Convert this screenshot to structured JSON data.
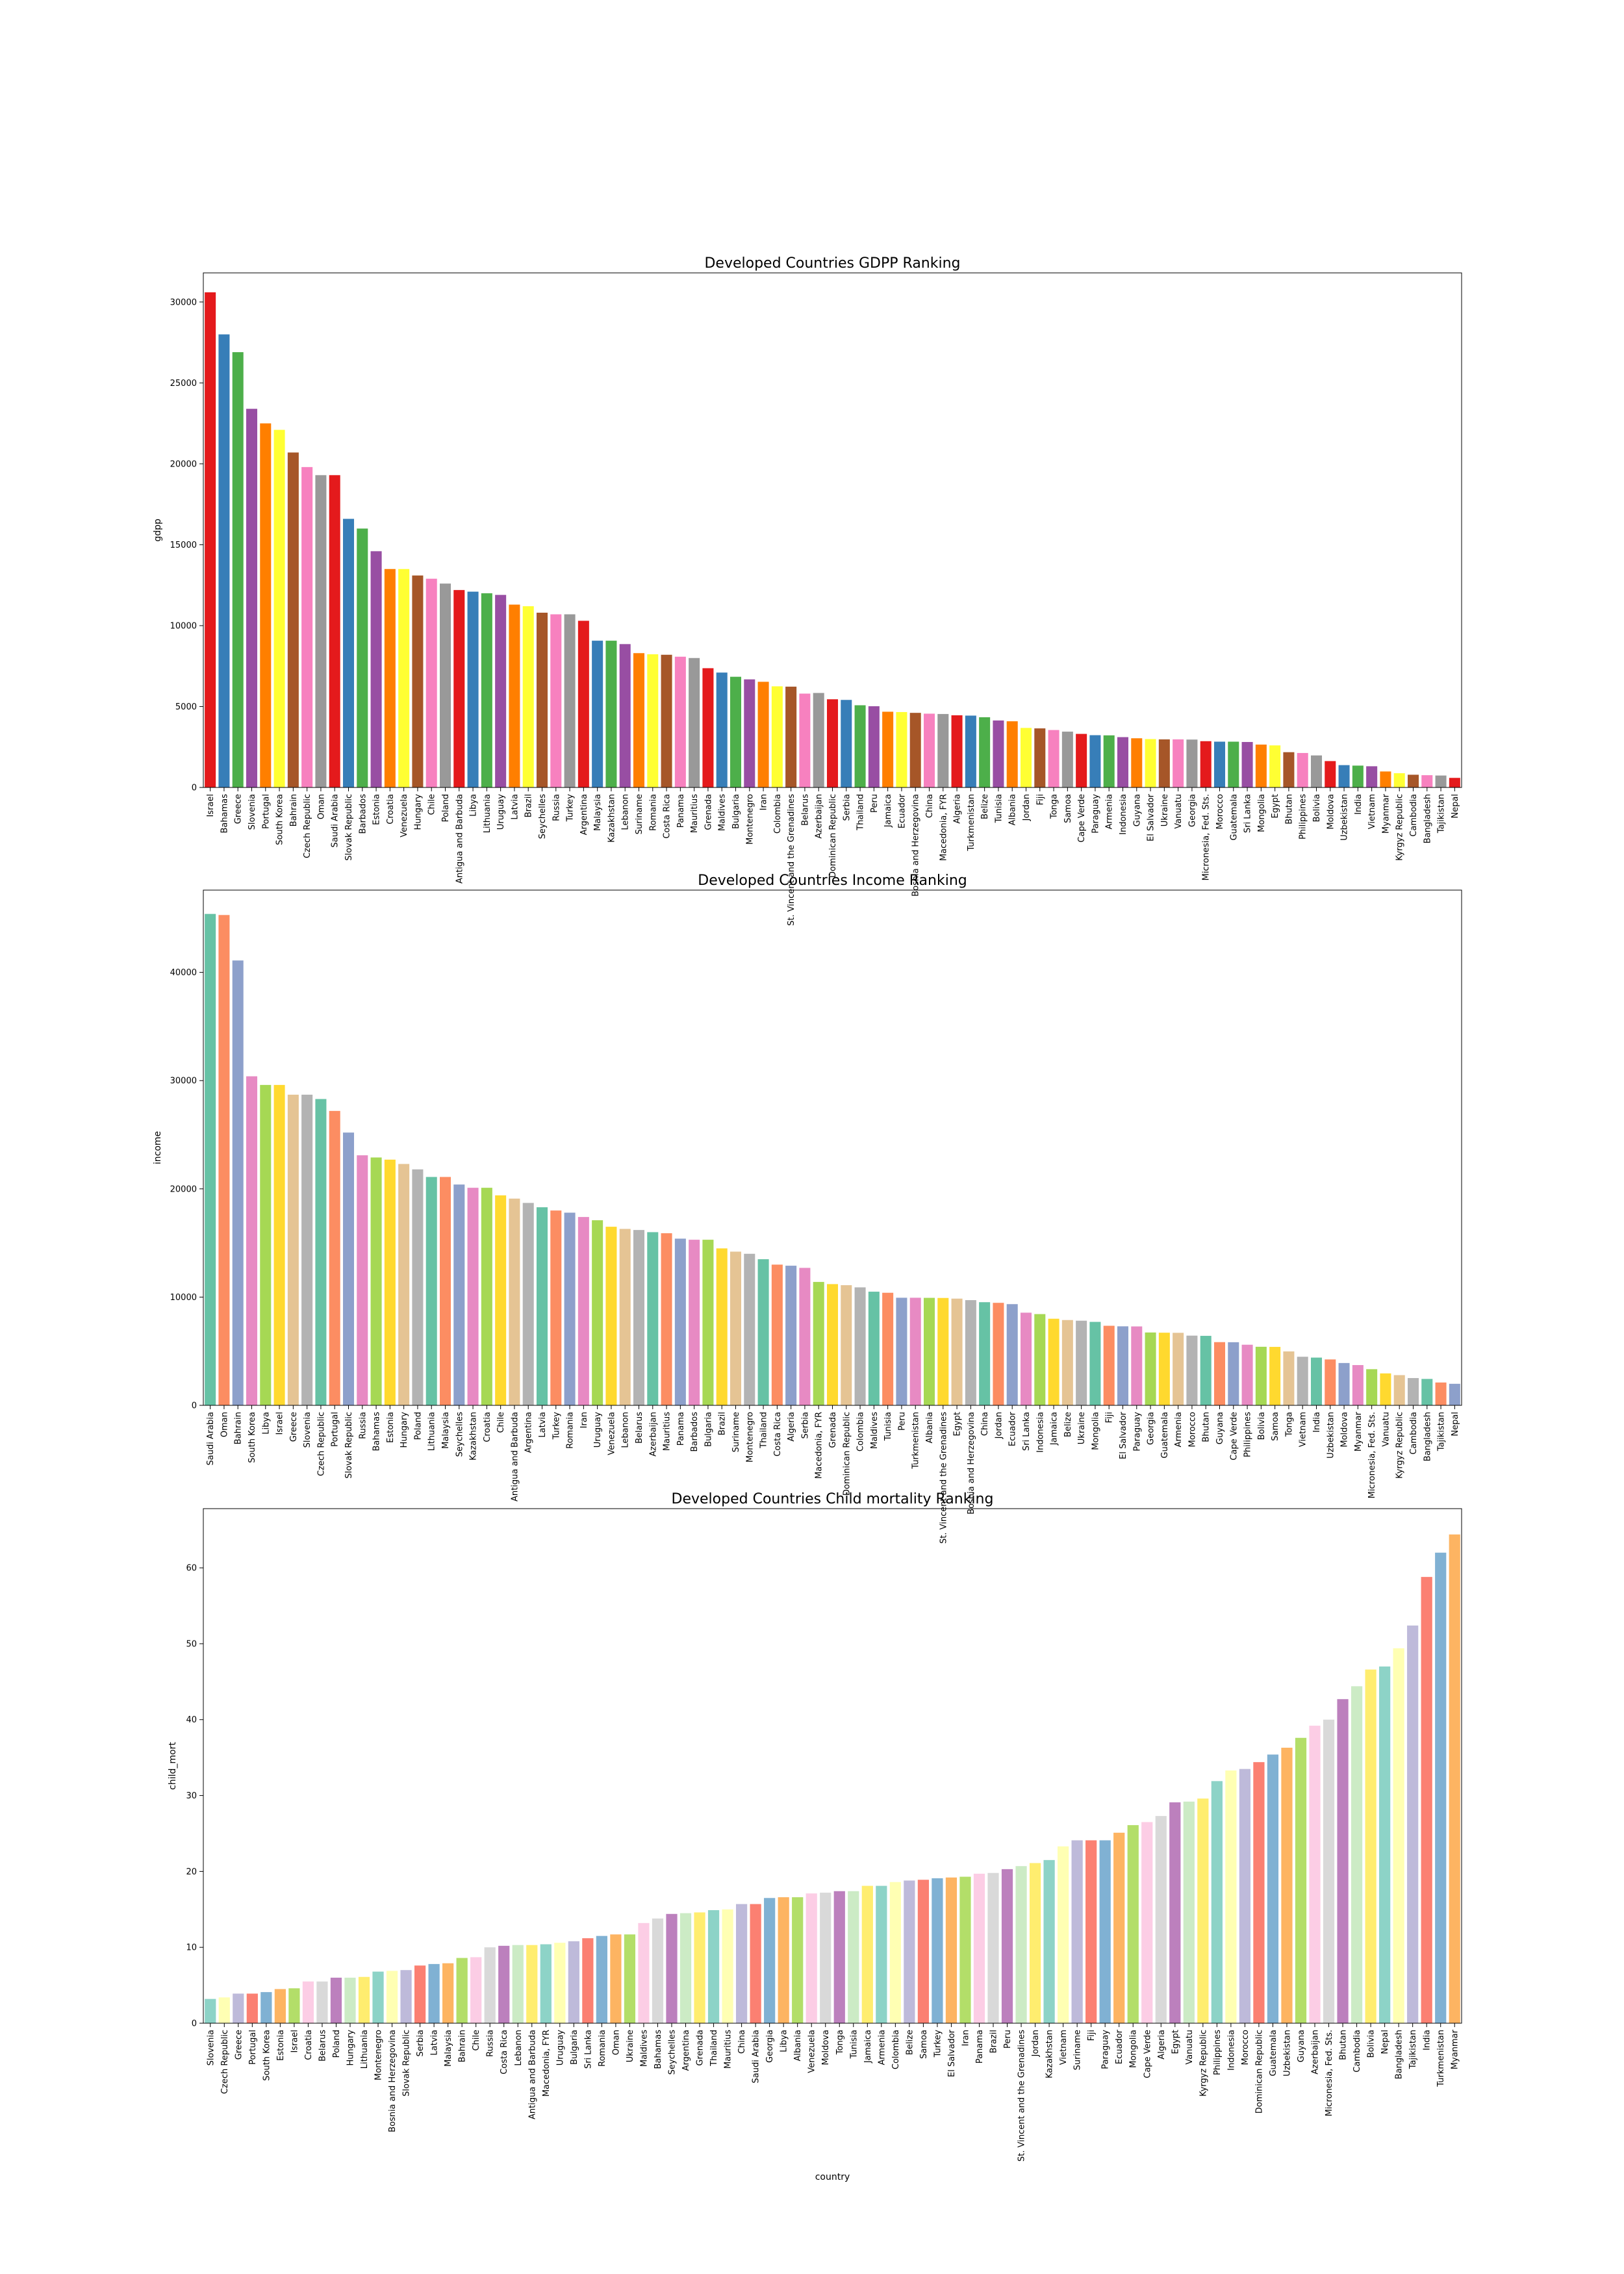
{
  "chart_data": [
    {
      "type": "bar",
      "title": "Developed Countries GDPP Ranking",
      "xlabel": "",
      "ylabel": "gdpp",
      "ylim": [
        0,
        31800
      ],
      "yticks": [
        0,
        5000,
        10000,
        15000,
        20000,
        25000,
        30000
      ],
      "palette": [
        "#e41a1c",
        "#377eb8",
        "#4daf4a",
        "#984ea3",
        "#ff7f00",
        "#ffff33",
        "#a65628",
        "#f781bf",
        "#999999"
      ],
      "categories": [
        "Israel",
        "Bahamas",
        "Greece",
        "Slovenia",
        "Portugal",
        "South Korea",
        "Bahrain",
        "Czech Republic",
        "Oman",
        "Saudi Arabia",
        "Slovak Republic",
        "Barbados",
        "Estonia",
        "Croatia",
        "Venezuela",
        "Hungary",
        "Chile",
        "Poland",
        "Antigua and Barbuda",
        "Libya",
        "Lithuania",
        "Uruguay",
        "Latvia",
        "Brazil",
        "Seychelles",
        "Russia",
        "Turkey",
        "Argentina",
        "Malaysia",
        "Kazakhstan",
        "Lebanon",
        "Suriname",
        "Romania",
        "Costa Rica",
        "Panama",
        "Mauritius",
        "Grenada",
        "Maldives",
        "Bulgaria",
        "Montenegro",
        "Iran",
        "Colombia",
        "St. Vincent and the Grenadines",
        "Belarus",
        "Azerbaijan",
        "Dominican Republic",
        "Serbia",
        "Thailand",
        "Peru",
        "Jamaica",
        "Ecuador",
        "Bosnia and Herzegovina",
        "China",
        "Macedonia, FYR",
        "Algeria",
        "Turkmenistan",
        "Belize",
        "Tunisia",
        "Albania",
        "Jordan",
        "Fiji",
        "Tonga",
        "Samoa",
        "Cape Verde",
        "Paraguay",
        "Armenia",
        "Indonesia",
        "Guyana",
        "El Salvador",
        "Ukraine",
        "Vanuatu",
        "Georgia",
        "Micronesia, Fed. Sts.",
        "Morocco",
        "Guatemala",
        "Sri Lanka",
        "Mongolia",
        "Egypt",
        "Bhutan",
        "Philippines",
        "Bolivia",
        "Moldova",
        "Uzbekistan",
        "India",
        "Vietnam",
        "Myanmar",
        "Kyrgyz Republic",
        "Cambodia",
        "Bangladesh",
        "Tajikistan",
        "Nepal"
      ],
      "values": [
        30600,
        28000,
        26900,
        23400,
        22500,
        22100,
        20700,
        19800,
        19300,
        19300,
        16600,
        16000,
        14600,
        13500,
        13500,
        13100,
        12900,
        12600,
        12200,
        12100,
        12000,
        11900,
        11300,
        11200,
        10800,
        10700,
        10700,
        10300,
        9070,
        9070,
        8860,
        8300,
        8230,
        8200,
        8080,
        8000,
        7370,
        7100,
        6840,
        6680,
        6530,
        6250,
        6230,
        5800,
        5840,
        5450,
        5410,
        5080,
        5020,
        4680,
        4660,
        4610,
        4560,
        4540,
        4460,
        4440,
        4340,
        4140,
        4090,
        3680,
        3650,
        3550,
        3450,
        3310,
        3230,
        3220,
        3110,
        3040,
        2990,
        2970,
        2970,
        2960,
        2860,
        2830,
        2830,
        2810,
        2650,
        2600,
        2180,
        2130,
        1980,
        1630,
        1380,
        1350,
        1310,
        988,
        880,
        786,
        758,
        738,
        592
      ]
    },
    {
      "type": "bar",
      "title": "Developed Countries Income Ranking",
      "xlabel": "",
      "ylabel": "income",
      "ylim": [
        0,
        47600
      ],
      "yticks": [
        0,
        10000,
        20000,
        30000,
        40000
      ],
      "palette": [
        "#66c2a5",
        "#fc8d62",
        "#8da0cb",
        "#e78ac3",
        "#a6d854",
        "#ffd92f",
        "#e5c494",
        "#b3b3b3"
      ],
      "categories": [
        "Saudi Arabia",
        "Oman",
        "Bahrain",
        "South Korea",
        "Libya",
        "Israel",
        "Greece",
        "Slovenia",
        "Czech Republic",
        "Portugal",
        "Slovak Republic",
        "Russia",
        "Bahamas",
        "Estonia",
        "Hungary",
        "Poland",
        "Lithuania",
        "Malaysia",
        "Seychelles",
        "Kazakhstan",
        "Croatia",
        "Chile",
        "Antigua and Barbuda",
        "Argentina",
        "Latvia",
        "Turkey",
        "Romania",
        "Iran",
        "Uruguay",
        "Venezuela",
        "Lebanon",
        "Belarus",
        "Azerbaijan",
        "Mauritius",
        "Panama",
        "Barbados",
        "Bulgaria",
        "Brazil",
        "Suriname",
        "Montenegro",
        "Thailand",
        "Costa Rica",
        "Algeria",
        "Serbia",
        "Macedonia, FYR",
        "Grenada",
        "Dominican Republic",
        "Colombia",
        "Maldives",
        "Tunisia",
        "Peru",
        "Turkmenistan",
        "Albania",
        "St. Vincent and the Grenadines",
        "Egypt",
        "Bosnia and Herzegovina",
        "China",
        "Jordan",
        "Ecuador",
        "Sri Lanka",
        "Indonesia",
        "Jamaica",
        "Belize",
        "Ukraine",
        "Mongolia",
        "Fiji",
        "El Salvador",
        "Paraguay",
        "Georgia",
        "Guatemala",
        "Armenia",
        "Morocco",
        "Bhutan",
        "Guyana",
        "Cape Verde",
        "Philippines",
        "Bolivia",
        "Samoa",
        "Tonga",
        "Vietnam",
        "India",
        "Uzbekistan",
        "Moldova",
        "Myanmar",
        "Micronesia, Fed. Sts.",
        "Vanuatu",
        "Kyrgyz Republic",
        "Cambodia",
        "Bangladesh",
        "Tajikistan",
        "Nepal"
      ],
      "values": [
        45400,
        45300,
        41100,
        30400,
        29600,
        29600,
        28700,
        28700,
        28300,
        27200,
        25200,
        23100,
        22900,
        22700,
        22300,
        21800,
        21100,
        21100,
        20400,
        20100,
        20100,
        19400,
        19100,
        18700,
        18300,
        18000,
        17800,
        17400,
        17100,
        16500,
        16300,
        16200,
        16000,
        15900,
        15400,
        15300,
        15300,
        14500,
        14200,
        14000,
        13500,
        13000,
        12900,
        12700,
        11400,
        11200,
        11100,
        10900,
        10500,
        10400,
        9940,
        9940,
        9930,
        9920,
        9860,
        9720,
        9530,
        9470,
        9350,
        8560,
        8430,
        8000,
        7880,
        7820,
        7710,
        7350,
        7300,
        7290,
        6730,
        6710,
        6700,
        6440,
        6420,
        5840,
        5830,
        5600,
        5410,
        5400,
        4980,
        4490,
        4410,
        4240,
        3910,
        3720,
        3340,
        2950,
        2790,
        2520,
        2440,
        2110,
        1990
      ]
    },
    {
      "type": "bar",
      "title": "Developed Countries Child mortality Ranking",
      "xlabel": "country",
      "ylabel": "child_mort",
      "ylim": [
        0,
        67.8
      ],
      "yticks": [
        0,
        10,
        20,
        30,
        40,
        50,
        60
      ],
      "palette": [
        "#8dd3c7",
        "#ffffb3",
        "#bebada",
        "#fb8072",
        "#80b1d3",
        "#fdb462",
        "#b3de69",
        "#fccde5",
        "#d9d9d9",
        "#bc80bd",
        "#ccebc5",
        "#ffed6f"
      ],
      "categories": [
        "Slovenia",
        "Czech Republic",
        "Greece",
        "Portugal",
        "South Korea",
        "Estonia",
        "Israel",
        "Croatia",
        "Belarus",
        "Poland",
        "Hungary",
        "Lithuania",
        "Montenegro",
        "Bosnia and Herzegovina",
        "Slovak Republic",
        "Serbia",
        "Latvia",
        "Malaysia",
        "Bahrain",
        "Chile",
        "Russia",
        "Costa Rica",
        "Lebanon",
        "Antigua and Barbuda",
        "Macedonia, FYR",
        "Uruguay",
        "Bulgaria",
        "Sri Lanka",
        "Romania",
        "Oman",
        "Ukraine",
        "Maldives",
        "Bahamas",
        "Seychelles",
        "Argentina",
        "Grenada",
        "Thailand",
        "Mauritius",
        "China",
        "Saudi Arabia",
        "Georgia",
        "Libya",
        "Albania",
        "Venezuela",
        "Moldova",
        "Tonga",
        "Tunisia",
        "Jamaica",
        "Armenia",
        "Colombia",
        "Belize",
        "Samoa",
        "Turkey",
        "El Salvador",
        "Iran",
        "Panama",
        "Brazil",
        "Peru",
        "St. Vincent and the Grenadines",
        "Jordan",
        "Kazakhstan",
        "Vietnam",
        "Suriname",
        "Fiji",
        "Paraguay",
        "Ecuador",
        "Mongolia",
        "Cape Verde",
        "Algeria",
        "Egypt",
        "Vanuatu",
        "Kyrgyz Republic",
        "Philippines",
        "Indonesia",
        "Morocco",
        "Dominican Republic",
        "Guatemala",
        "Uzbekistan",
        "Guyana",
        "Azerbaijan",
        "Micronesia, Fed. Sts.",
        "Bhutan",
        "Cambodia",
        "Bolivia",
        "Nepal",
        "Bangladesh",
        "Tajikistan",
        "India",
        "Turkmenistan",
        "Myanmar"
      ],
      "values": [
        3.2,
        3.4,
        3.9,
        3.9,
        4.1,
        4.5,
        4.6,
        5.5,
        5.5,
        6.0,
        6.0,
        6.1,
        6.8,
        6.9,
        7.0,
        7.6,
        7.8,
        7.9,
        8.6,
        8.7,
        10.0,
        10.2,
        10.3,
        10.3,
        10.4,
        10.6,
        10.8,
        11.2,
        11.5,
        11.7,
        11.7,
        13.2,
        13.8,
        14.4,
        14.5,
        14.6,
        14.9,
        15.0,
        15.7,
        15.7,
        16.5,
        16.6,
        16.6,
        17.1,
        17.2,
        17.4,
        17.4,
        18.1,
        18.1,
        18.6,
        18.8,
        18.9,
        19.1,
        19.2,
        19.3,
        19.7,
        19.8,
        20.3,
        20.7,
        21.1,
        21.5,
        23.3,
        24.1,
        24.1,
        24.1,
        25.1,
        26.1,
        26.5,
        27.3,
        29.1,
        29.2,
        29.6,
        31.9,
        33.3,
        33.5,
        34.4,
        35.4,
        36.3,
        37.6,
        39.2,
        40.0,
        42.7,
        44.4,
        46.6,
        47.0,
        49.4,
        52.4,
        58.8,
        62.0,
        64.4
      ]
    }
  ]
}
